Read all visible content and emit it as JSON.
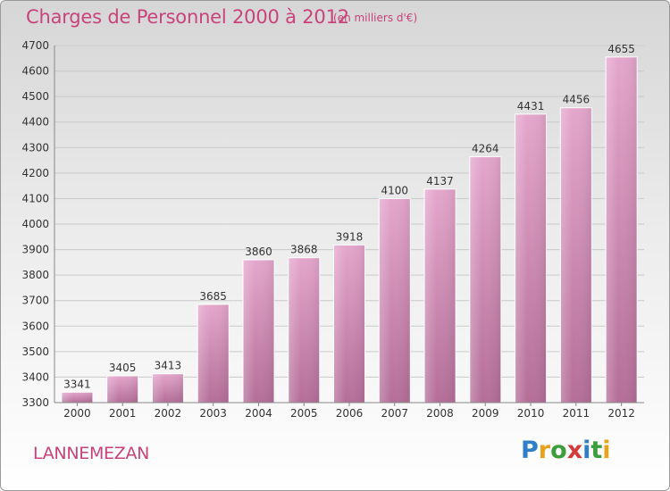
{
  "title": "Charges de Personnel 2000 à 2012",
  "subtitle": "(en milliers d'€)",
  "town": "LANNEMEZAN",
  "logo": {
    "letters": [
      "P",
      "r",
      "o",
      "x",
      "i",
      "t",
      "i"
    ],
    "colors": [
      "#2f7fc8",
      "#e8a21b",
      "#3a9e3a",
      "#d43a3a",
      "#2f7fc8",
      "#3a9e3a",
      "#e8a21b"
    ]
  },
  "colors": {
    "bar_top": "#e4a6cc",
    "bar_bottom": "#b46e98",
    "accent": "#c8437a"
  },
  "chart_data": {
    "type": "bar",
    "title": "Charges de Personnel 2000 à 2012",
    "subtitle": "(en milliers d'€)",
    "categories": [
      "2000",
      "2001",
      "2002",
      "2003",
      "2004",
      "2005",
      "2006",
      "2007",
      "2008",
      "2009",
      "2010",
      "2011",
      "2012"
    ],
    "values": [
      3341,
      3405,
      3413,
      3685,
      3860,
      3868,
      3918,
      4100,
      4137,
      4264,
      4431,
      4456,
      4655
    ],
    "ylim": [
      3300,
      4700
    ],
    "yticks": [
      3300,
      3400,
      3500,
      3600,
      3700,
      3800,
      3900,
      4000,
      4100,
      4200,
      4300,
      4400,
      4500,
      4600,
      4700
    ],
    "grid": true,
    "xlabel": "",
    "ylabel": ""
  }
}
